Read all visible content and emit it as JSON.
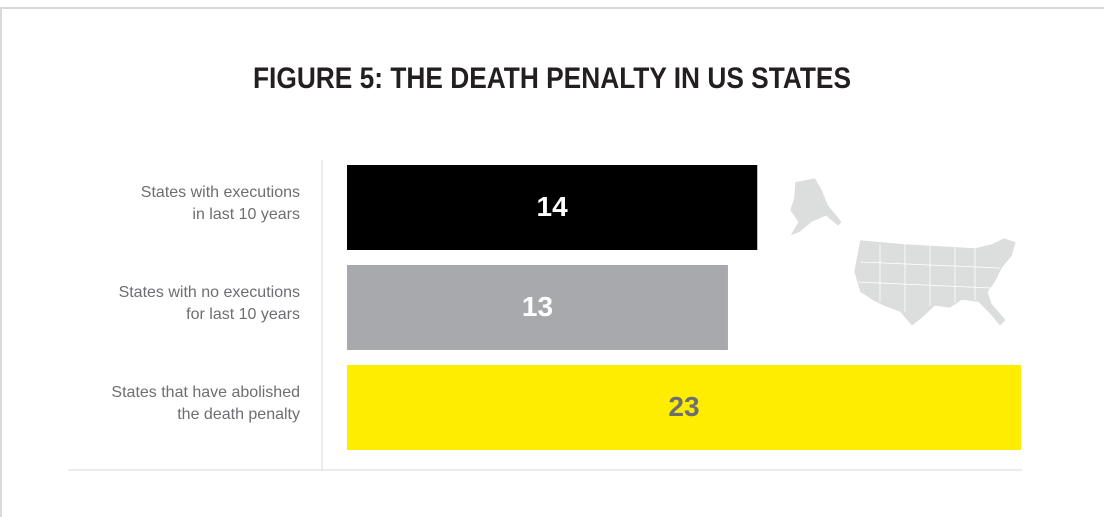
{
  "chart_data": {
    "type": "hbar",
    "title": "FIGURE 5: THE DEATH PENALTY IN US STATES",
    "categories": [
      "States with executions\nin last 10 years",
      "States with no executions\nfor last 10 years",
      "States that have abolished\nthe death penalty"
    ],
    "values": [
      14,
      13,
      23
    ],
    "colors": [
      "#000000",
      "#a7a9ac",
      "#ffed00"
    ],
    "label_colors": [
      "#ffffff",
      "#ffffff",
      "#6d6e71"
    ]
  }
}
